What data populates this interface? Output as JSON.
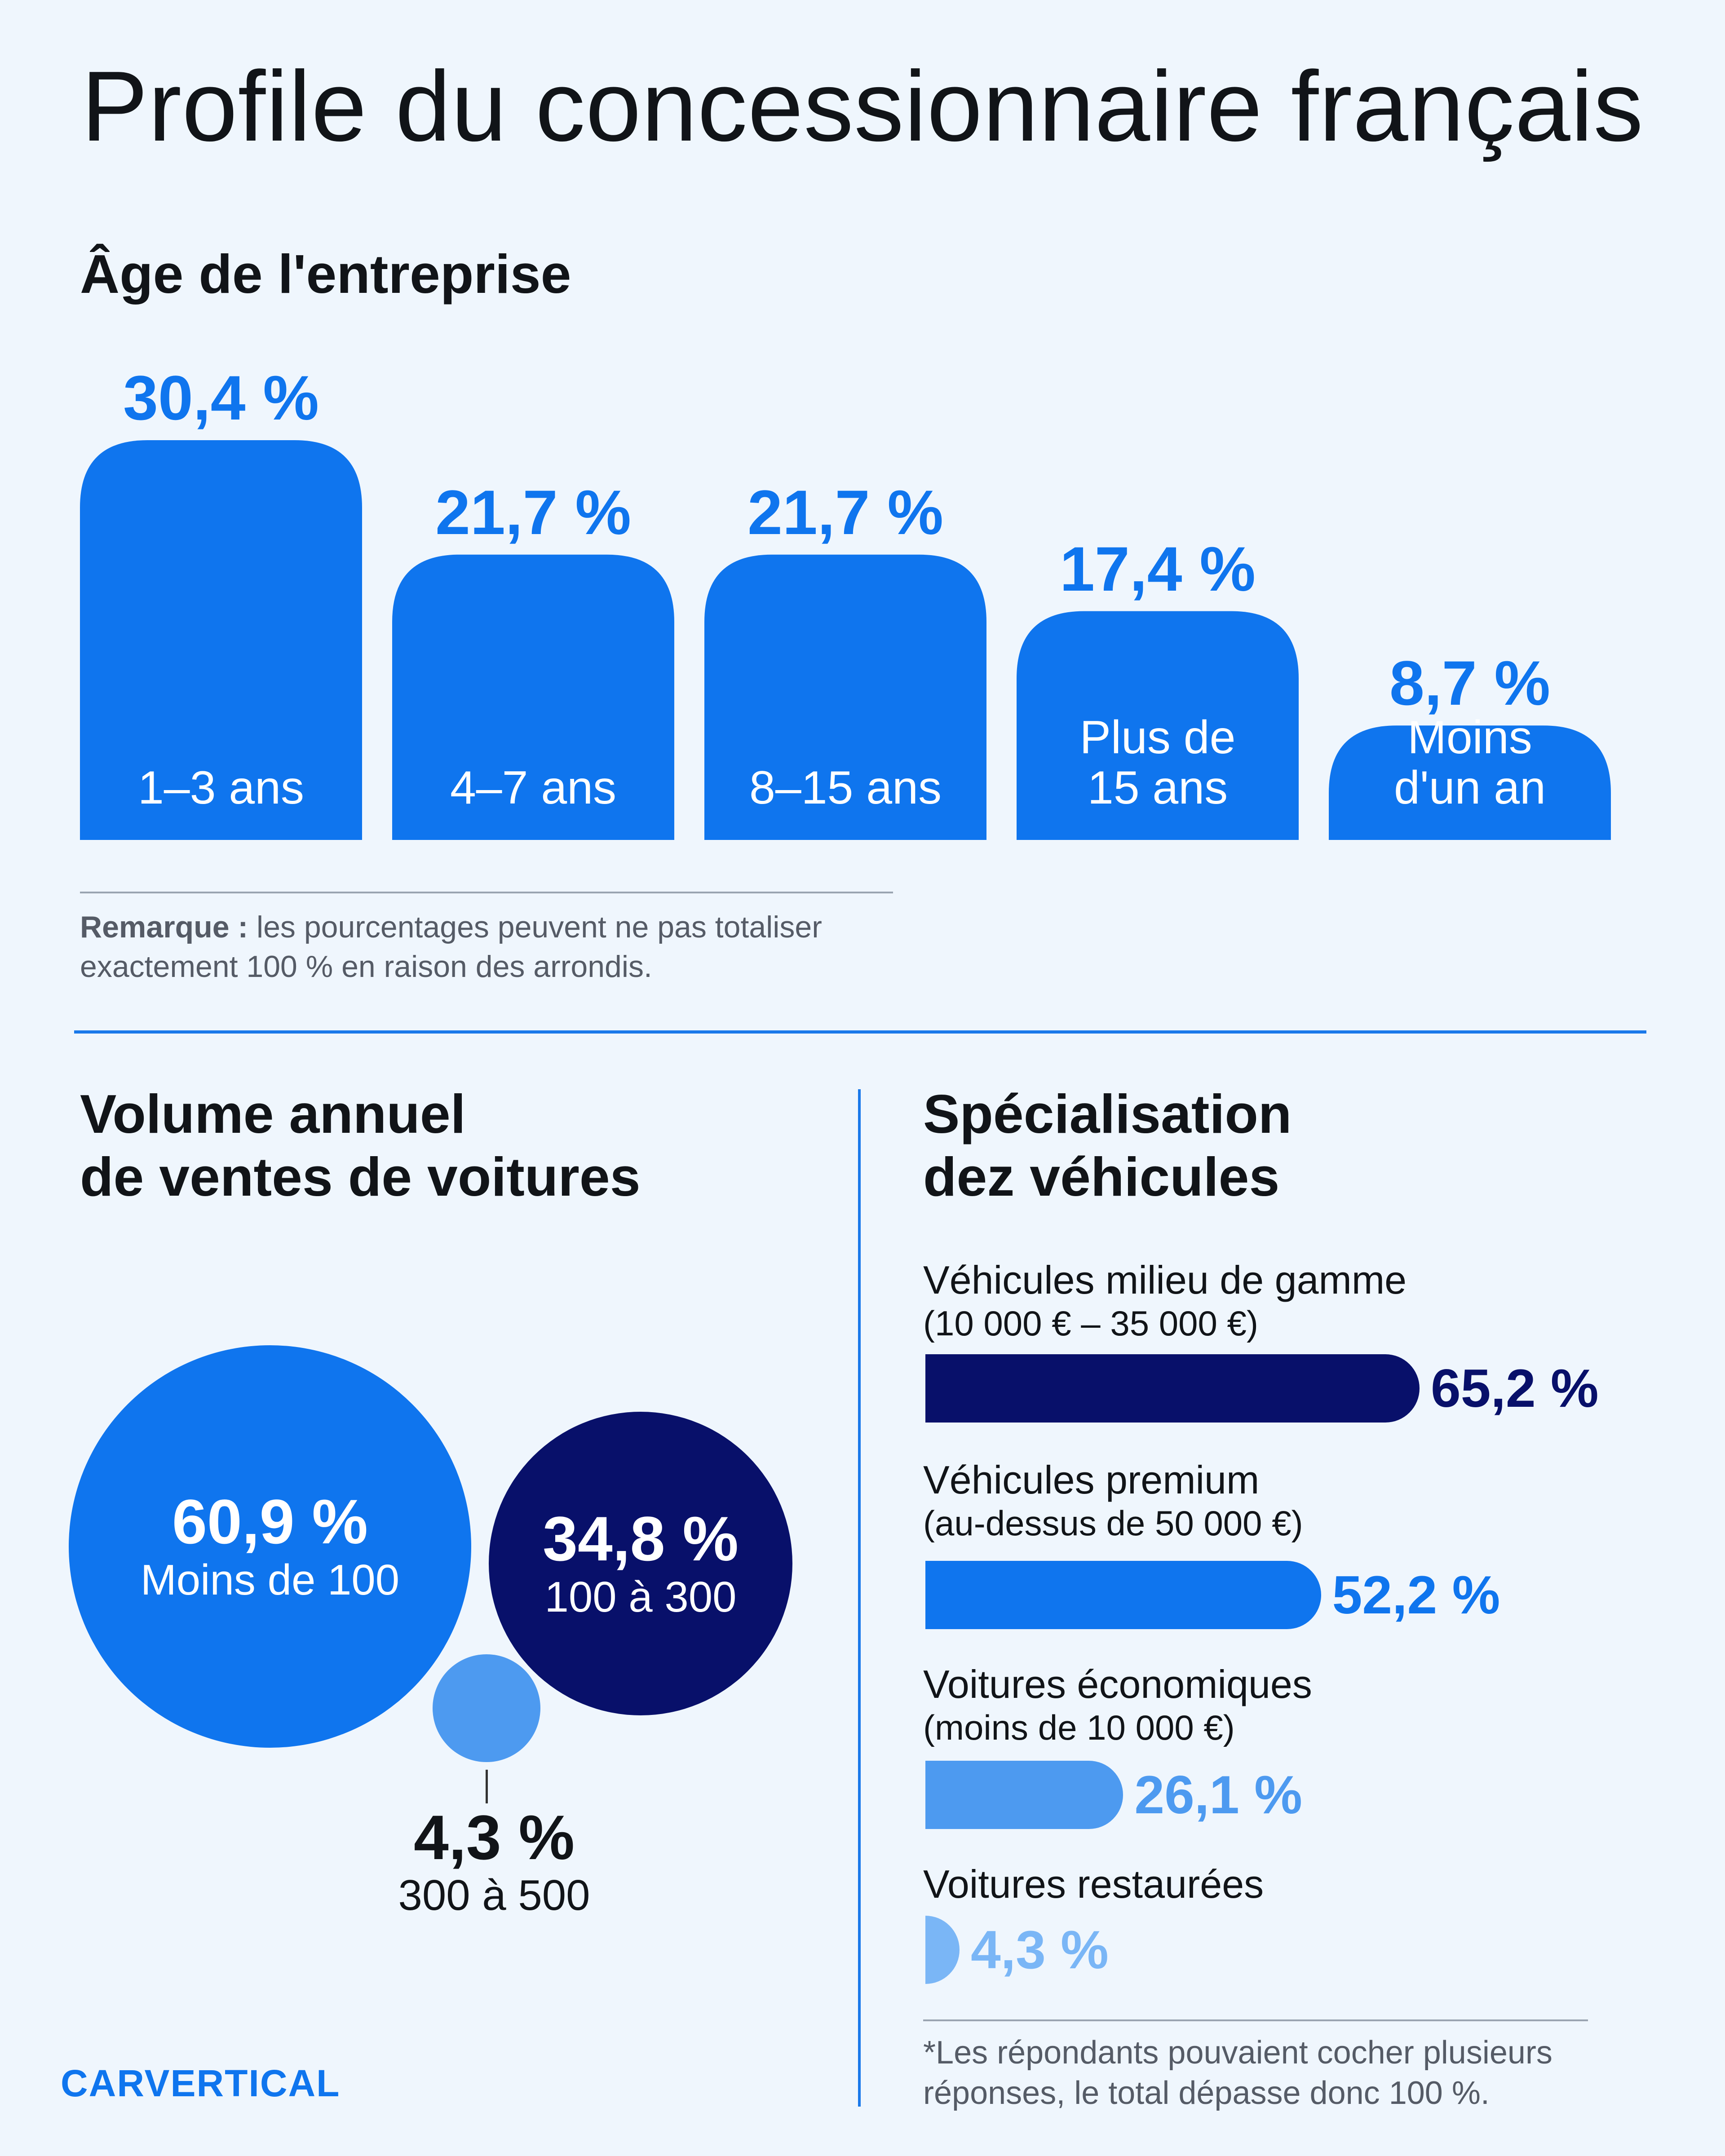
{
  "title": "Profile du concessionnaire français",
  "age_section": {
    "title": "Âge de l'entreprise",
    "remark_bold": "Remarque :",
    "remark_text": " les pourcentages peuvent ne pas totaliser exactement 100 % en raison des arrondis."
  },
  "volume_section": {
    "title_line1": "Volume annuel",
    "title_line2": "de ventes de voitures"
  },
  "spec_section": {
    "title_line1": "Spécialisation",
    "title_line2": "dez véhicules",
    "footnote": "*Les répondants pouvaient cocher plusieurs réponses, le total dépasse donc 100 %."
  },
  "logo": "CARVERTICAL",
  "colors": {
    "blue": "#0f75ee",
    "navy": "#08106a",
    "light_blue": "#4d9af0",
    "lighter_blue": "#7ab6f6",
    "background": "#eff6fd"
  },
  "chart_data": [
    {
      "type": "bar",
      "title": "Âge de l'entreprise",
      "categories": [
        "1–3 ans",
        "4–7 ans",
        "8–15 ans",
        "Plus de 15 ans",
        "Moins d'un an"
      ],
      "category_lines": [
        [
          "1–3 ans"
        ],
        [
          "4–7 ans"
        ],
        [
          "8–15 ans"
        ],
        [
          "Plus de",
          "15 ans"
        ],
        [
          "Moins",
          "d'un an"
        ]
      ],
      "values": [
        30.4,
        21.7,
        21.7,
        17.4,
        8.7
      ],
      "value_labels": [
        "30,4 %",
        "21,7 %",
        "21,7 %",
        "17,4 %",
        "8,7 %"
      ],
      "unit": "%"
    },
    {
      "type": "bubble",
      "title": "Volume annuel de ventes de voitures",
      "categories": [
        "Moins de 100",
        "100 à 300",
        "300 à 500"
      ],
      "values": [
        60.9,
        34.8,
        4.3
      ],
      "value_labels": [
        "60,9 %",
        "34,8 %",
        "4,3 %"
      ],
      "colors": [
        "#0f75ee",
        "#08106a",
        "#4d9af0"
      ]
    },
    {
      "type": "bar",
      "orientation": "horizontal",
      "title": "Spécialisation dez véhicules",
      "categories": [
        "Véhicules milieu de gamme",
        "Véhicules premium",
        "Voitures économiques",
        "Voitures restaurées"
      ],
      "subtitles": [
        "(10 000 € – 35 000 €)",
        "(au-dessus de 50 000 €)",
        "(moins de 10 000 €)",
        ""
      ],
      "values": [
        65.2,
        52.2,
        26.1,
        4.3
      ],
      "value_labels": [
        "65,2 %",
        "52,2 %",
        "26,1 %",
        "4,3 %"
      ],
      "colors": [
        "#08106a",
        "#0f75ee",
        "#4d9af0",
        "#7ab6f6"
      ]
    }
  ]
}
